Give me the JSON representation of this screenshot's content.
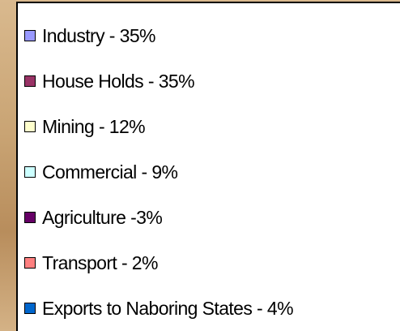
{
  "legend": {
    "items": [
      {
        "label": "Industry - 35%",
        "color": "#9999ff"
      },
      {
        "label": "House Holds - 35%",
        "color": "#993366"
      },
      {
        "label": "Mining - 12%",
        "color": "#ffffcc"
      },
      {
        "label": "Commercial - 9%",
        "color": "#ccffff"
      },
      {
        "label": "Agriculture -3%",
        "color": "#660066"
      },
      {
        "label": "Transport - 2%",
        "color": "#ff8080"
      },
      {
        "label": "Exports to Naboring States - 4%",
        "color": "#0066cc"
      }
    ]
  }
}
